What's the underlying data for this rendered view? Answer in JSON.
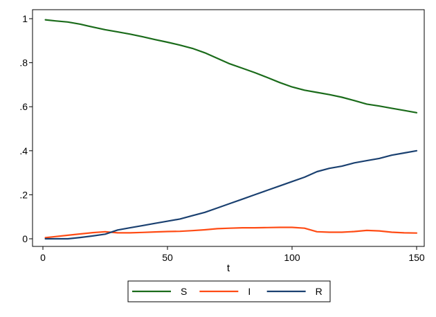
{
  "chart_data": {
    "type": "line",
    "xlabel": "t",
    "ylabel": "",
    "title": "",
    "xlim": [
      0,
      150
    ],
    "ylim": [
      0,
      1
    ],
    "x_ticks": [
      0,
      50,
      100,
      150
    ],
    "x_tick_labels": [
      "0",
      "50",
      "100",
      "150"
    ],
    "y_ticks": [
      0,
      0.2,
      0.4,
      0.6,
      0.8,
      1
    ],
    "y_tick_labels": [
      "0",
      ".2",
      ".4",
      ".6",
      ".8",
      "1"
    ],
    "grid": false,
    "legend_position": "bottom",
    "x": [
      1,
      5,
      10,
      15,
      20,
      25,
      30,
      35,
      40,
      45,
      50,
      55,
      60,
      65,
      70,
      75,
      80,
      85,
      90,
      95,
      100,
      105,
      110,
      115,
      120,
      125,
      130,
      135,
      140,
      145,
      150
    ],
    "series": [
      {
        "name": "S",
        "color": "#1a6b1a",
        "values": [
          0.995,
          0.99,
          0.985,
          0.975,
          0.962,
          0.95,
          0.94,
          0.93,
          0.918,
          0.905,
          0.893,
          0.88,
          0.865,
          0.845,
          0.82,
          0.795,
          0.775,
          0.755,
          0.733,
          0.71,
          0.69,
          0.675,
          0.665,
          0.655,
          0.643,
          0.628,
          0.612,
          0.603,
          0.593,
          0.583,
          0.573
        ]
      },
      {
        "name": "I",
        "color": "#ff4b14",
        "values": [
          0.005,
          0.01,
          0.016,
          0.022,
          0.028,
          0.032,
          0.027,
          0.027,
          0.029,
          0.031,
          0.033,
          0.034,
          0.037,
          0.041,
          0.046,
          0.048,
          0.05,
          0.05,
          0.051,
          0.052,
          0.052,
          0.048,
          0.032,
          0.03,
          0.03,
          0.033,
          0.038,
          0.036,
          0.03,
          0.027,
          0.026
        ]
      },
      {
        "name": "R",
        "color": "#1a4070",
        "values": [
          0.0,
          0.0,
          0.0,
          0.006,
          0.013,
          0.021,
          0.04,
          0.05,
          0.06,
          0.07,
          0.08,
          0.09,
          0.105,
          0.12,
          0.14,
          0.16,
          0.18,
          0.2,
          0.22,
          0.24,
          0.26,
          0.28,
          0.305,
          0.32,
          0.33,
          0.345,
          0.355,
          0.365,
          0.38,
          0.39,
          0.4
        ]
      }
    ]
  }
}
